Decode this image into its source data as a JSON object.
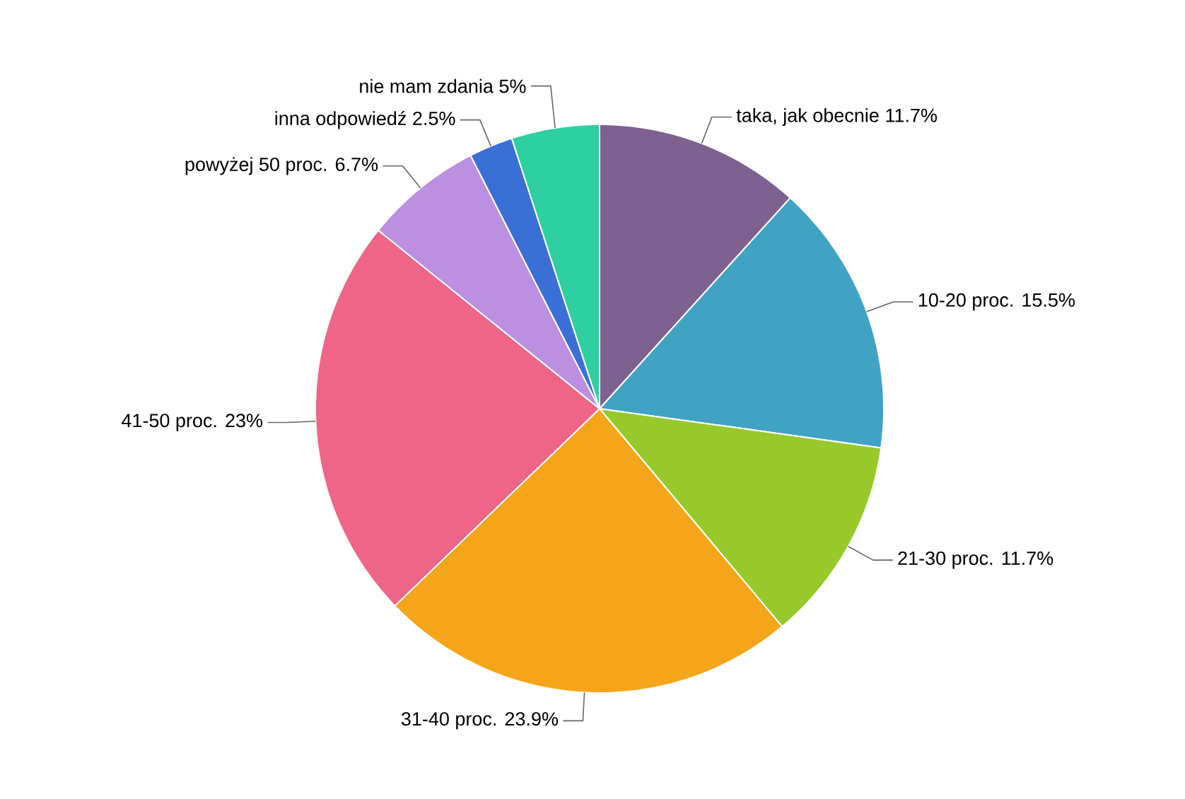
{
  "chart_data": {
    "type": "pie",
    "categories": [
      "taka, jak obecnie",
      "10-20 proc.",
      "21-30 proc.",
      "31-40 proc.",
      "41-50 proc.",
      "powyżej 50 proc.",
      "inna odpowiedź",
      "nie mam zdania"
    ],
    "values": [
      11.7,
      15.5,
      11.7,
      23.9,
      23,
      6.7,
      2.5,
      5
    ],
    "colors": [
      "#7e6191",
      "#41a3c4",
      "#97c92b",
      "#f5a519",
      "#ef6587",
      "#bd8fe0",
      "#3a6fd6",
      "#2ecfa0"
    ],
    "value_labels": [
      "11.7%",
      "15.5%",
      "11.7%",
      "23.9%",
      "23%",
      "6.7%",
      "2.5%",
      "5%"
    ]
  }
}
